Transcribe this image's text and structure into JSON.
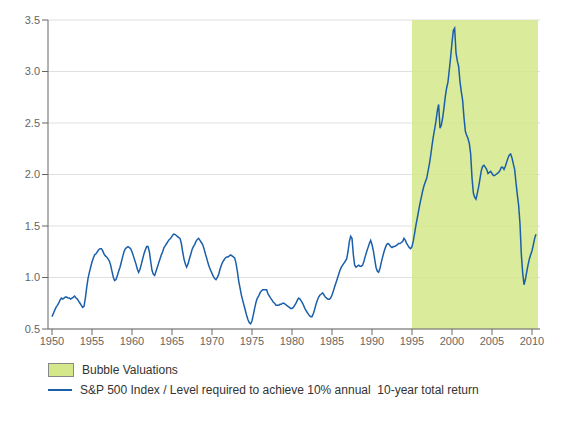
{
  "chart_data": {
    "type": "line",
    "x": [
      1950.0,
      1950.17,
      1950.33,
      1950.5,
      1950.67,
      1950.83,
      1951.0,
      1951.17,
      1951.33,
      1951.5,
      1951.67,
      1951.83,
      1952.0,
      1952.17,
      1952.33,
      1952.5,
      1952.67,
      1952.83,
      1953.0,
      1953.17,
      1953.33,
      1953.5,
      1953.67,
      1953.83,
      1954.0,
      1954.17,
      1954.33,
      1954.5,
      1954.67,
      1954.83,
      1955.0,
      1955.17,
      1955.33,
      1955.5,
      1955.67,
      1955.83,
      1956.0,
      1956.17,
      1956.33,
      1956.5,
      1956.67,
      1956.83,
      1957.0,
      1957.17,
      1957.33,
      1957.5,
      1957.67,
      1957.83,
      1958.0,
      1958.17,
      1958.33,
      1958.5,
      1958.67,
      1958.83,
      1959.0,
      1959.17,
      1959.33,
      1959.5,
      1959.67,
      1959.83,
      1960.0,
      1960.17,
      1960.33,
      1960.5,
      1960.67,
      1960.83,
      1961.0,
      1961.17,
      1961.33,
      1961.5,
      1961.67,
      1961.83,
      1962.0,
      1962.17,
      1962.33,
      1962.5,
      1962.67,
      1962.83,
      1963.0,
      1963.17,
      1963.33,
      1963.5,
      1963.67,
      1963.83,
      1964.0,
      1964.17,
      1964.33,
      1964.5,
      1964.67,
      1964.83,
      1965.0,
      1965.17,
      1965.33,
      1965.5,
      1965.67,
      1965.83,
      1966.0,
      1966.17,
      1966.33,
      1966.5,
      1966.67,
      1966.83,
      1967.0,
      1967.17,
      1967.33,
      1967.5,
      1967.67,
      1967.83,
      1968.0,
      1968.17,
      1968.33,
      1968.5,
      1968.67,
      1968.83,
      1969.0,
      1969.17,
      1969.33,
      1969.5,
      1969.67,
      1969.83,
      1970.0,
      1970.17,
      1970.33,
      1970.5,
      1970.67,
      1970.83,
      1971.0,
      1971.17,
      1971.33,
      1971.5,
      1971.67,
      1971.83,
      1972.0,
      1972.17,
      1972.33,
      1972.5,
      1972.67,
      1972.83,
      1973.0,
      1973.17,
      1973.33,
      1973.5,
      1973.67,
      1973.83,
      1974.0,
      1974.17,
      1974.33,
      1974.5,
      1974.67,
      1974.83,
      1975.0,
      1975.17,
      1975.33,
      1975.5,
      1975.67,
      1975.83,
      1976.0,
      1976.17,
      1976.33,
      1976.5,
      1976.67,
      1976.83,
      1977.0,
      1977.17,
      1977.33,
      1977.5,
      1977.67,
      1977.83,
      1978.0,
      1978.17,
      1978.33,
      1978.5,
      1978.67,
      1978.83,
      1979.0,
      1979.17,
      1979.33,
      1979.5,
      1979.67,
      1979.83,
      1980.0,
      1980.17,
      1980.33,
      1980.5,
      1980.67,
      1980.83,
      1981.0,
      1981.17,
      1981.33,
      1981.5,
      1981.67,
      1981.83,
      1982.0,
      1982.17,
      1982.33,
      1982.5,
      1982.67,
      1982.83,
      1983.0,
      1983.17,
      1983.33,
      1983.5,
      1983.67,
      1983.83,
      1984.0,
      1984.17,
      1984.33,
      1984.5,
      1984.67,
      1984.83,
      1985.0,
      1985.17,
      1985.33,
      1985.5,
      1985.67,
      1985.83,
      1986.0,
      1986.17,
      1986.33,
      1986.5,
      1986.67,
      1986.83,
      1987.0,
      1987.17,
      1987.33,
      1987.5,
      1987.67,
      1987.83,
      1988.0,
      1988.17,
      1988.33,
      1988.5,
      1988.67,
      1988.83,
      1989.0,
      1989.17,
      1989.33,
      1989.5,
      1989.67,
      1989.83,
      1990.0,
      1990.17,
      1990.33,
      1990.5,
      1990.67,
      1990.83,
      1991.0,
      1991.17,
      1991.33,
      1991.5,
      1991.67,
      1991.83,
      1992.0,
      1992.17,
      1992.33,
      1992.5,
      1992.67,
      1992.83,
      1993.0,
      1993.17,
      1993.33,
      1993.5,
      1993.67,
      1993.83,
      1994.0,
      1994.17,
      1994.33,
      1994.5,
      1994.67,
      1994.83,
      1995.0,
      1995.17,
      1995.33,
      1995.5,
      1995.67,
      1995.83,
      1996.0,
      1996.17,
      1996.33,
      1996.5,
      1996.67,
      1996.83,
      1997.0,
      1997.17,
      1997.33,
      1997.5,
      1997.67,
      1997.83,
      1998.0,
      1998.17,
      1998.33,
      1998.5,
      1998.67,
      1998.83,
      1999.0,
      1999.17,
      1999.33,
      1999.5,
      1999.67,
      1999.83,
      2000.0,
      2000.17,
      2000.33,
      2000.5,
      2000.67,
      2000.83,
      2001.0,
      2001.17,
      2001.33,
      2001.5,
      2001.67,
      2001.83,
      2002.0,
      2002.17,
      2002.33,
      2002.5,
      2002.67,
      2002.83,
      2003.0,
      2003.17,
      2003.33,
      2003.5,
      2003.67,
      2003.83,
      2004.0,
      2004.17,
      2004.33,
      2004.5,
      2004.67,
      2004.83,
      2005.0,
      2005.17,
      2005.33,
      2005.5,
      2005.67,
      2005.83,
      2006.0,
      2006.17,
      2006.33,
      2006.5,
      2006.67,
      2006.83,
      2007.0,
      2007.17,
      2007.33,
      2007.5,
      2007.67,
      2007.83,
      2008.0,
      2008.17,
      2008.33,
      2008.5,
      2008.67,
      2008.83,
      2009.0,
      2009.17,
      2009.33,
      2009.5,
      2009.67,
      2009.83,
      2010.0,
      2010.17,
      2010.33,
      2010.5
    ],
    "series": [
      {
        "name": "S&P 500 Index / Level required to achieve 10% annual  10-year total return",
        "color": "#1b5faa",
        "values": [
          0.62,
          0.65,
          0.68,
          0.71,
          0.73,
          0.75,
          0.78,
          0.8,
          0.79,
          0.8,
          0.81,
          0.81,
          0.8,
          0.8,
          0.79,
          0.8,
          0.81,
          0.82,
          0.8,
          0.79,
          0.77,
          0.75,
          0.73,
          0.71,
          0.72,
          0.8,
          0.9,
          0.99,
          1.05,
          1.1,
          1.15,
          1.19,
          1.22,
          1.23,
          1.25,
          1.27,
          1.28,
          1.28,
          1.26,
          1.23,
          1.21,
          1.2,
          1.18,
          1.16,
          1.12,
          1.06,
          1.0,
          0.97,
          0.98,
          1.02,
          1.06,
          1.1,
          1.15,
          1.2,
          1.25,
          1.28,
          1.29,
          1.3,
          1.29,
          1.28,
          1.25,
          1.21,
          1.17,
          1.13,
          1.08,
          1.05,
          1.08,
          1.13,
          1.18,
          1.23,
          1.27,
          1.3,
          1.3,
          1.25,
          1.16,
          1.07,
          1.03,
          1.02,
          1.06,
          1.1,
          1.14,
          1.18,
          1.22,
          1.25,
          1.29,
          1.31,
          1.33,
          1.35,
          1.37,
          1.38,
          1.4,
          1.42,
          1.42,
          1.41,
          1.4,
          1.39,
          1.38,
          1.33,
          1.25,
          1.18,
          1.13,
          1.1,
          1.13,
          1.18,
          1.22,
          1.27,
          1.3,
          1.32,
          1.35,
          1.37,
          1.38,
          1.36,
          1.34,
          1.32,
          1.28,
          1.23,
          1.19,
          1.14,
          1.1,
          1.07,
          1.04,
          1.01,
          0.99,
          0.98,
          1.0,
          1.03,
          1.08,
          1.12,
          1.15,
          1.17,
          1.19,
          1.2,
          1.2,
          1.21,
          1.22,
          1.21,
          1.2,
          1.19,
          1.14,
          1.06,
          0.97,
          0.9,
          0.83,
          0.78,
          0.73,
          0.68,
          0.63,
          0.59,
          0.56,
          0.55,
          0.58,
          0.64,
          0.7,
          0.76,
          0.8,
          0.82,
          0.85,
          0.87,
          0.88,
          0.88,
          0.88,
          0.88,
          0.84,
          0.82,
          0.8,
          0.78,
          0.76,
          0.75,
          0.73,
          0.73,
          0.73,
          0.74,
          0.74,
          0.75,
          0.75,
          0.74,
          0.73,
          0.72,
          0.71,
          0.7,
          0.7,
          0.71,
          0.73,
          0.75,
          0.78,
          0.8,
          0.79,
          0.77,
          0.75,
          0.72,
          0.69,
          0.67,
          0.65,
          0.63,
          0.62,
          0.62,
          0.65,
          0.69,
          0.74,
          0.78,
          0.81,
          0.83,
          0.84,
          0.85,
          0.83,
          0.81,
          0.8,
          0.79,
          0.79,
          0.8,
          0.83,
          0.87,
          0.91,
          0.95,
          0.99,
          1.03,
          1.07,
          1.1,
          1.12,
          1.14,
          1.16,
          1.18,
          1.25,
          1.35,
          1.4,
          1.38,
          1.22,
          1.12,
          1.1,
          1.11,
          1.12,
          1.11,
          1.11,
          1.12,
          1.16,
          1.21,
          1.25,
          1.29,
          1.33,
          1.36,
          1.32,
          1.26,
          1.18,
          1.1,
          1.06,
          1.05,
          1.09,
          1.15,
          1.2,
          1.25,
          1.29,
          1.32,
          1.33,
          1.32,
          1.3,
          1.29,
          1.3,
          1.3,
          1.31,
          1.32,
          1.33,
          1.33,
          1.34,
          1.35,
          1.38,
          1.36,
          1.33,
          1.31,
          1.29,
          1.28,
          1.3,
          1.36,
          1.43,
          1.51,
          1.58,
          1.65,
          1.72,
          1.78,
          1.84,
          1.89,
          1.93,
          1.96,
          2.03,
          2.1,
          2.18,
          2.28,
          2.37,
          2.44,
          2.52,
          2.62,
          2.68,
          2.45,
          2.48,
          2.55,
          2.65,
          2.76,
          2.84,
          2.9,
          3.02,
          3.14,
          3.28,
          3.4,
          3.42,
          3.18,
          3.1,
          3.05,
          2.9,
          2.8,
          2.72,
          2.55,
          2.42,
          2.38,
          2.35,
          2.3,
          2.2,
          1.97,
          1.82,
          1.78,
          1.76,
          1.82,
          1.88,
          1.96,
          2.04,
          2.08,
          2.09,
          2.07,
          2.05,
          2.01,
          2.02,
          2.03,
          2.01,
          1.99,
          1.99,
          2.0,
          2.01,
          2.02,
          2.04,
          2.07,
          2.07,
          2.05,
          2.08,
          2.12,
          2.16,
          2.19,
          2.2,
          2.16,
          2.1,
          2.05,
          1.92,
          1.8,
          1.7,
          1.52,
          1.22,
          1.05,
          0.93,
          0.98,
          1.05,
          1.12,
          1.18,
          1.22,
          1.26,
          1.32,
          1.38,
          1.42
        ]
      }
    ],
    "regions": [
      {
        "name": "Bubble Valuations",
        "x": [
          1995.0,
          2010.75
        ],
        "color": "#d4e88a"
      }
    ],
    "xlim": [
      1949.5,
      2011.0
    ],
    "ylim": [
      0.5,
      3.5
    ],
    "xticks": [
      1950,
      1955,
      1960,
      1965,
      1970,
      1975,
      1980,
      1985,
      1990,
      1995,
      2000,
      2005,
      2010
    ],
    "yticks": [
      0.5,
      {
        "value": 1.0,
        "label": "1.0"
      },
      1.5,
      {
        "value": 2.0,
        "label": "2.0"
      },
      2.5,
      {
        "value": 3.0,
        "label": "3.0"
      },
      3.5
    ],
    "grid": true,
    "legend": "bottom"
  }
}
